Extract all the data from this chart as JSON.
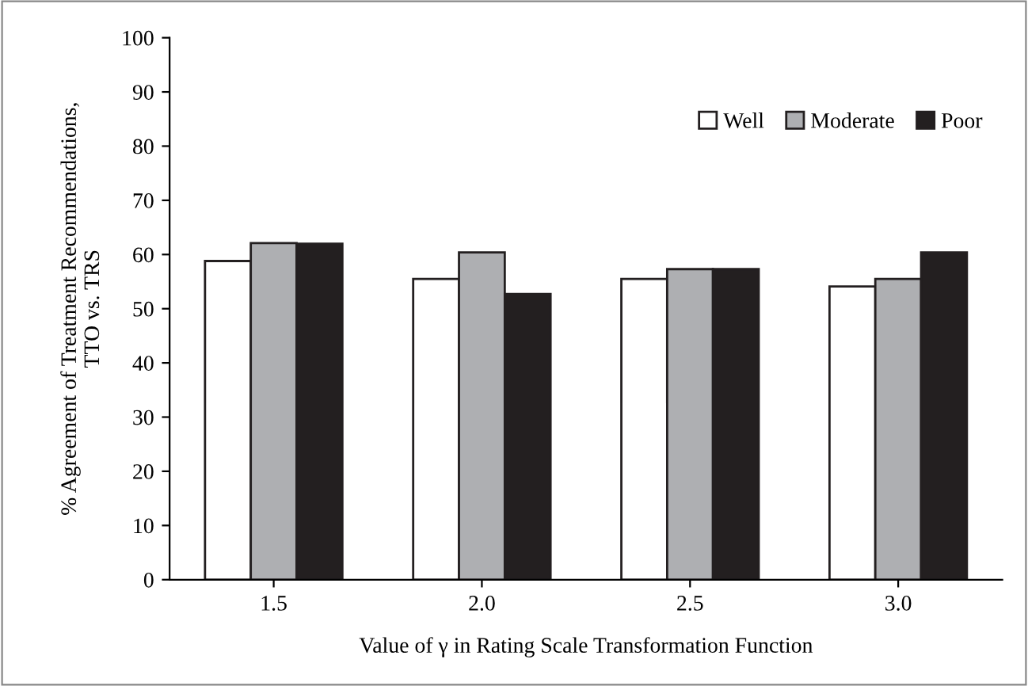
{
  "chart_data": {
    "type": "bar",
    "xlabel": "Value of γ in Rating Scale Transformation Function",
    "ylabel": "% Agreement of Treatment Recommendations,\nTTO vs. TRS",
    "categories": [
      "1.5",
      "2.0",
      "2.5",
      "3.0"
    ],
    "series": [
      {
        "name": "Well",
        "color": "#ffffff",
        "values": [
          58.8,
          55.5,
          55.5,
          54.1
        ]
      },
      {
        "name": "Moderate",
        "color": "#aeafb2",
        "values": [
          62.1,
          60.4,
          57.3,
          55.5
        ]
      },
      {
        "name": "Poor",
        "color": "#231f20",
        "values": [
          62,
          52.7,
          57.3,
          60.4
        ]
      }
    ],
    "ylim": [
      0,
      100
    ],
    "yticks": [
      0,
      10,
      20,
      30,
      40,
      50,
      60,
      70,
      80,
      90,
      100
    ],
    "grid": false,
    "legend": "top right"
  }
}
